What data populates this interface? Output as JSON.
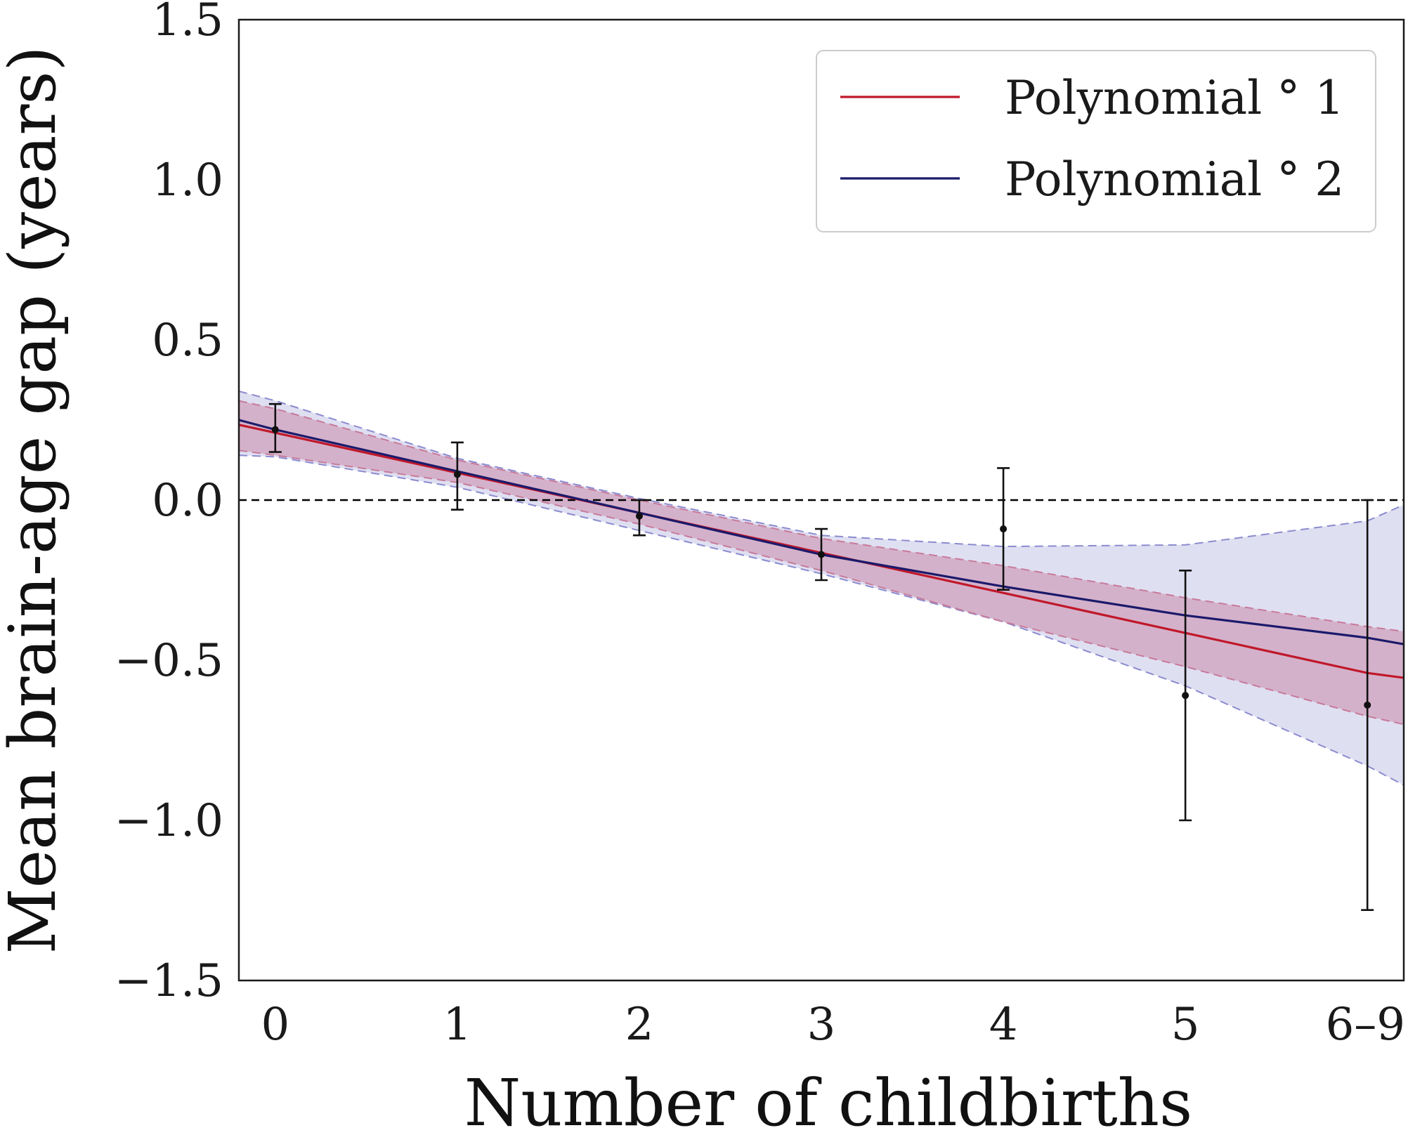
{
  "chart_data": {
    "type": "line",
    "xlabel": "Number of childbirths",
    "ylabel": "Mean brain-age gap (years)",
    "title": "",
    "x_ticks": [
      {
        "x": 0,
        "label": "0"
      },
      {
        "x": 1,
        "label": "1"
      },
      {
        "x": 2,
        "label": "2"
      },
      {
        "x": 3,
        "label": "3"
      },
      {
        "x": 4,
        "label": "4"
      },
      {
        "x": 5,
        "label": "5"
      },
      {
        "x": 6,
        "label": "6–9"
      }
    ],
    "y_ticks": [
      {
        "y": 1.5,
        "label": "1.5"
      },
      {
        "y": 1.0,
        "label": "1.0"
      },
      {
        "y": 0.5,
        "label": "0.5"
      },
      {
        "y": 0.0,
        "label": "0.0"
      },
      {
        "y": -0.5,
        "label": "−0.5"
      },
      {
        "y": -1.0,
        "label": "−1.0"
      },
      {
        "y": -1.5,
        "label": "−1.5"
      }
    ],
    "xlim": [
      -0.2,
      6.2
    ],
    "ylim": [
      -1.5,
      1.5
    ],
    "grid": false,
    "legend_position": "top-right",
    "reference_line": {
      "y": 0.0,
      "style": "dashed",
      "color": "#000000"
    },
    "points": [
      {
        "x": 0,
        "y": 0.22,
        "lower": 0.15,
        "upper": 0.3
      },
      {
        "x": 1,
        "y": 0.08,
        "lower": -0.03,
        "upper": 0.18
      },
      {
        "x": 2,
        "y": -0.05,
        "lower": -0.11,
        "upper": 0.0
      },
      {
        "x": 3,
        "y": -0.17,
        "lower": -0.25,
        "upper": -0.09
      },
      {
        "x": 4,
        "y": -0.09,
        "lower": -0.28,
        "upper": 0.1
      },
      {
        "x": 5,
        "y": -0.61,
        "lower": -1.0,
        "upper": -0.22
      },
      {
        "x": 6,
        "y": -0.64,
        "lower": -1.28,
        "upper": 0.0
      }
    ],
    "series": [
      {
        "name": "Polynomial ° 1",
        "color": "#c0182a",
        "band_color": "#c77a99",
        "x": [
          -0.2,
          0,
          1,
          2,
          3,
          4,
          5,
          6,
          6.2
        ],
        "y": [
          0.235,
          0.21,
          0.085,
          -0.04,
          -0.165,
          -0.29,
          -0.415,
          -0.54,
          -0.555
        ],
        "lower": [
          0.155,
          0.14,
          0.055,
          -0.075,
          -0.22,
          -0.38,
          -0.52,
          -0.675,
          -0.7
        ],
        "upper": [
          0.31,
          0.285,
          0.125,
          0.0,
          -0.12,
          -0.205,
          -0.305,
          -0.395,
          -0.41
        ]
      },
      {
        "name": "Polynomial ° 2",
        "color": "#1b1a6b",
        "band_color": "#8b8bcf",
        "x": [
          -0.2,
          0,
          1,
          2,
          3,
          4,
          5,
          6,
          6.2
        ],
        "y": [
          0.25,
          0.22,
          0.09,
          -0.04,
          -0.17,
          -0.27,
          -0.36,
          -0.43,
          -0.45
        ],
        "lower": [
          0.14,
          0.135,
          0.04,
          -0.095,
          -0.23,
          -0.38,
          -0.58,
          -0.83,
          -0.89
        ],
        "upper": [
          0.34,
          0.31,
          0.13,
          0.005,
          -0.11,
          -0.145,
          -0.14,
          -0.065,
          -0.015
        ]
      }
    ],
    "legend": [
      {
        "label": "Polynomial ° 1",
        "color": "#c0182a"
      },
      {
        "label": "Polynomial ° 2",
        "color": "#1b1a6b"
      }
    ]
  }
}
